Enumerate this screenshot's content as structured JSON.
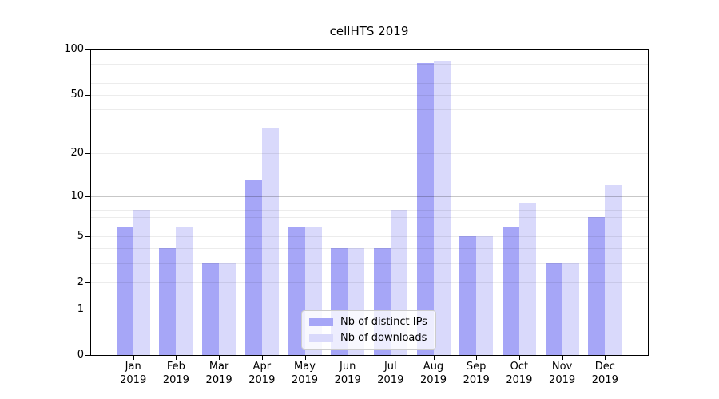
{
  "chart_data": {
    "type": "bar",
    "title": "cellHTS 2019",
    "scale": "log1p",
    "categories": [
      "Jan",
      "Feb",
      "Mar",
      "Apr",
      "May",
      "Jun",
      "Jul",
      "Aug",
      "Sep",
      "Oct",
      "Nov",
      "Dec"
    ],
    "x_tick_year": "2019",
    "series": [
      {
        "name": "Nb of distinct IPs",
        "color": "#a6a6f7",
        "values": [
          6,
          4,
          3,
          13,
          6,
          4,
          4,
          81,
          5,
          6,
          3,
          7
        ]
      },
      {
        "name": "Nb of downloads",
        "color": "#d9d9fb",
        "values": [
          8,
          6,
          3,
          30,
          6,
          4,
          8,
          84,
          5,
          9,
          3,
          12
        ]
      }
    ],
    "y_ticks": [
      0,
      1,
      2,
      5,
      10,
      20,
      50,
      100
    ],
    "ylim": [
      0,
      100
    ],
    "xlabel": "",
    "ylabel": "",
    "grid": "both",
    "legend_position": "lower center-right inside plot"
  }
}
